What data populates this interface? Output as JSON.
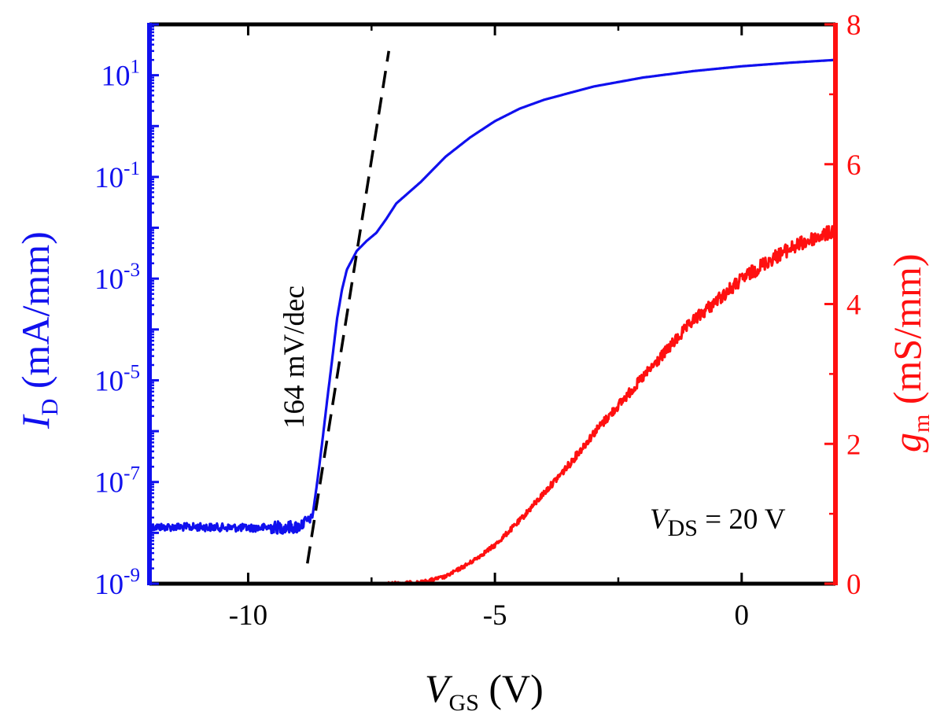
{
  "chart_data": {
    "type": "line",
    "title": "",
    "x_axis": {
      "label_main": "V",
      "label_sub": "GS",
      "label_unit": " (V)",
      "range": [
        -12,
        1.9
      ],
      "ticks": [
        {
          "value": -10,
          "label": "-10"
        },
        {
          "value": -5,
          "label": "-5"
        },
        {
          "value": 0,
          "label": "0"
        }
      ]
    },
    "y_left": {
      "label_main": "I",
      "label_sub": "D",
      "label_unit": " (mA/mm)",
      "scale": "log",
      "range": [
        1e-09,
        100
      ],
      "color": "#1010ee",
      "ticks": [
        {
          "value": 1e-09,
          "base": "10",
          "exp": "-9"
        },
        {
          "value": 1e-07,
          "base": "10",
          "exp": "-7"
        },
        {
          "value": 1e-05,
          "base": "10",
          "exp": "-5"
        },
        {
          "value": 0.001,
          "base": "10",
          "exp": "-3"
        },
        {
          "value": 0.1,
          "base": "10",
          "exp": "-1"
        },
        {
          "value": 10,
          "base": "10",
          "exp": "1"
        }
      ]
    },
    "y_right": {
      "label_main": "g",
      "label_sub": "m",
      "label_unit": " (mS/mm)",
      "scale": "linear",
      "range": [
        0,
        8
      ],
      "color": "#ff1010",
      "ticks": [
        {
          "value": 0,
          "label": "0"
        },
        {
          "value": 2,
          "label": "2"
        },
        {
          "value": 4,
          "label": "4"
        },
        {
          "value": 6,
          "label": "6"
        },
        {
          "value": 8,
          "label": "8"
        }
      ]
    },
    "series": [
      {
        "axis": "left",
        "color": "#1010ee",
        "noise_below_x": -8.7,
        "points": [
          [
            -12.0,
            1.3e-08
          ],
          [
            -11.0,
            1.3e-08
          ],
          [
            -10.0,
            1.25e-08
          ],
          [
            -9.0,
            1.3e-08
          ],
          [
            -8.85,
            1.6e-08
          ],
          [
            -8.7,
            2e-08
          ],
          [
            -8.6,
            1e-07
          ],
          [
            -8.5,
            6e-07
          ],
          [
            -8.4,
            4e-06
          ],
          [
            -8.3,
            2.5e-05
          ],
          [
            -8.2,
            0.00016
          ],
          [
            -8.1,
            0.0006
          ],
          [
            -8.0,
            0.0015
          ],
          [
            -7.8,
            0.0035
          ],
          [
            -7.6,
            0.0055
          ],
          [
            -7.4,
            0.008
          ],
          [
            -7.2,
            0.015
          ],
          [
            -7.0,
            0.03
          ],
          [
            -6.5,
            0.08
          ],
          [
            -6.0,
            0.25
          ],
          [
            -5.5,
            0.6
          ],
          [
            -5.0,
            1.25
          ],
          [
            -4.5,
            2.2
          ],
          [
            -4.0,
            3.3
          ],
          [
            -3.0,
            6.0
          ],
          [
            -2.0,
            9.0
          ],
          [
            -1.0,
            12.0
          ],
          [
            0.0,
            15.0
          ],
          [
            1.0,
            17.7
          ],
          [
            1.9,
            20.0
          ]
        ]
      },
      {
        "axis": "right",
        "color": "#ff1010",
        "noisy": true,
        "points": [
          [
            -7.2,
            0.0
          ],
          [
            -6.5,
            0.02
          ],
          [
            -6.0,
            0.1
          ],
          [
            -5.5,
            0.3
          ],
          [
            -5.0,
            0.55
          ],
          [
            -4.5,
            0.9
          ],
          [
            -4.0,
            1.3
          ],
          [
            -3.5,
            1.7
          ],
          [
            -3.0,
            2.15
          ],
          [
            -2.5,
            2.55
          ],
          [
            -2.0,
            2.95
          ],
          [
            -1.5,
            3.35
          ],
          [
            -1.0,
            3.75
          ],
          [
            -0.5,
            4.05
          ],
          [
            0.0,
            4.35
          ],
          [
            0.5,
            4.6
          ],
          [
            1.0,
            4.8
          ],
          [
            1.5,
            4.95
          ],
          [
            1.9,
            5.05
          ]
        ]
      }
    ],
    "fit_line": {
      "style": "dashed",
      "color": "#000000",
      "points": [
        [
          -8.8,
          2.5e-09
        ],
        [
          -7.15,
          30
        ]
      ],
      "label": "164 mV/dec"
    },
    "annotation": {
      "main": "V",
      "sub": "DS",
      "rest": " = 20 V"
    },
    "grid": false,
    "legend": "none"
  }
}
